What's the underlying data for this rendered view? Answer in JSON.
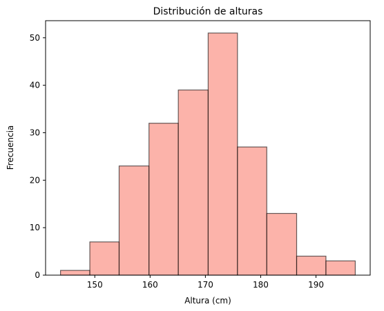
{
  "chart_data": {
    "type": "bar",
    "title": "Distribución de alturas",
    "xlabel": "Altura (cm)",
    "ylabel": "Frecuencia",
    "bins": [
      {
        "x0": 143.8,
        "x1": 149.1,
        "count": 1
      },
      {
        "x0": 149.1,
        "x1": 154.4,
        "count": 7
      },
      {
        "x0": 154.4,
        "x1": 159.8,
        "count": 23
      },
      {
        "x0": 159.8,
        "x1": 165.1,
        "count": 32
      },
      {
        "x0": 165.1,
        "x1": 170.5,
        "count": 39
      },
      {
        "x0": 170.5,
        "x1": 175.8,
        "count": 51
      },
      {
        "x0": 175.8,
        "x1": 181.1,
        "count": 27
      },
      {
        "x0": 181.1,
        "x1": 186.5,
        "count": 13
      },
      {
        "x0": 186.5,
        "x1": 191.8,
        "count": 4
      },
      {
        "x0": 191.8,
        "x1": 197.1,
        "count": 3
      }
    ],
    "xlim": [
      141.1,
      199.8
    ],
    "ylim": [
      0,
      53.6
    ],
    "xticks": [
      150,
      160,
      170,
      180,
      190
    ],
    "yticks": [
      0,
      10,
      20,
      30,
      40,
      50
    ],
    "bar_color": "#fa8072",
    "bar_edge_color": "#000000",
    "grid": false
  }
}
